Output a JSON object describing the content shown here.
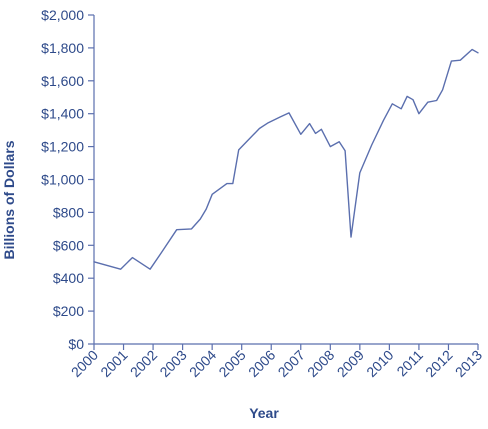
{
  "chart_data": {
    "type": "line",
    "title": "",
    "xlabel": "Year",
    "ylabel": "Billions of Dollars",
    "ylim": [
      0,
      2000
    ],
    "xlim": [
      2000,
      2013
    ],
    "grid": false,
    "legend": "none",
    "colors": {
      "line": "#5b6fae",
      "axis": "#5b6fae",
      "text": "#2e4a8a"
    },
    "y_ticks": [
      {
        "value": 0,
        "label": "$0"
      },
      {
        "value": 200,
        "label": "$200"
      },
      {
        "value": 400,
        "label": "$400"
      },
      {
        "value": 600,
        "label": "$600"
      },
      {
        "value": 800,
        "label": "$800"
      },
      {
        "value": 1000,
        "label": "$1,000"
      },
      {
        "value": 1200,
        "label": "$1,200"
      },
      {
        "value": 1400,
        "label": "$1,400"
      },
      {
        "value": 1600,
        "label": "$1,600"
      },
      {
        "value": 1800,
        "label": "$1,800"
      },
      {
        "value": 2000,
        "label": "$2,000"
      }
    ],
    "x_ticks": [
      {
        "value": 2000,
        "label": "2000"
      },
      {
        "value": 2001,
        "label": "2001"
      },
      {
        "value": 2002,
        "label": "2002"
      },
      {
        "value": 2003,
        "label": "2003"
      },
      {
        "value": 2004,
        "label": "2004"
      },
      {
        "value": 2005,
        "label": "2005"
      },
      {
        "value": 2006,
        "label": "2006"
      },
      {
        "value": 2007,
        "label": "2007"
      },
      {
        "value": 2008,
        "label": "2008"
      },
      {
        "value": 2009,
        "label": "2009"
      },
      {
        "value": 2010,
        "label": "2010"
      },
      {
        "value": 2011,
        "label": "2011"
      },
      {
        "value": 2012,
        "label": "2012"
      },
      {
        "value": 2013,
        "label": "2013"
      }
    ],
    "series": [
      {
        "x": [
          2000.0,
          2000.9,
          2001.3,
          2001.9,
          2002.3,
          2002.8,
          2003.3,
          2003.6,
          2003.8,
          2004.0,
          2004.5,
          2004.7,
          2004.9,
          2005.6,
          2005.9,
          2006.3,
          2006.6,
          2007.0,
          2007.3,
          2007.5,
          2007.7,
          2008.0,
          2008.3,
          2008.5,
          2008.7,
          2009.0,
          2009.4,
          2009.8,
          2010.1,
          2010.4,
          2010.6,
          2010.8,
          2011.0,
          2011.3,
          2011.6,
          2011.8,
          2012.1,
          2012.4,
          2012.8,
          2013.0
        ],
        "values": [
          500,
          455,
          525,
          455,
          560,
          695,
          700,
          760,
          820,
          910,
          975,
          975,
          1180,
          1310,
          1345,
          1380,
          1405,
          1275,
          1340,
          1280,
          1305,
          1200,
          1230,
          1175,
          650,
          1040,
          1210,
          1360,
          1460,
          1430,
          1505,
          1485,
          1400,
          1470,
          1480,
          1545,
          1720,
          1725,
          1790,
          1770
        ]
      }
    ]
  }
}
